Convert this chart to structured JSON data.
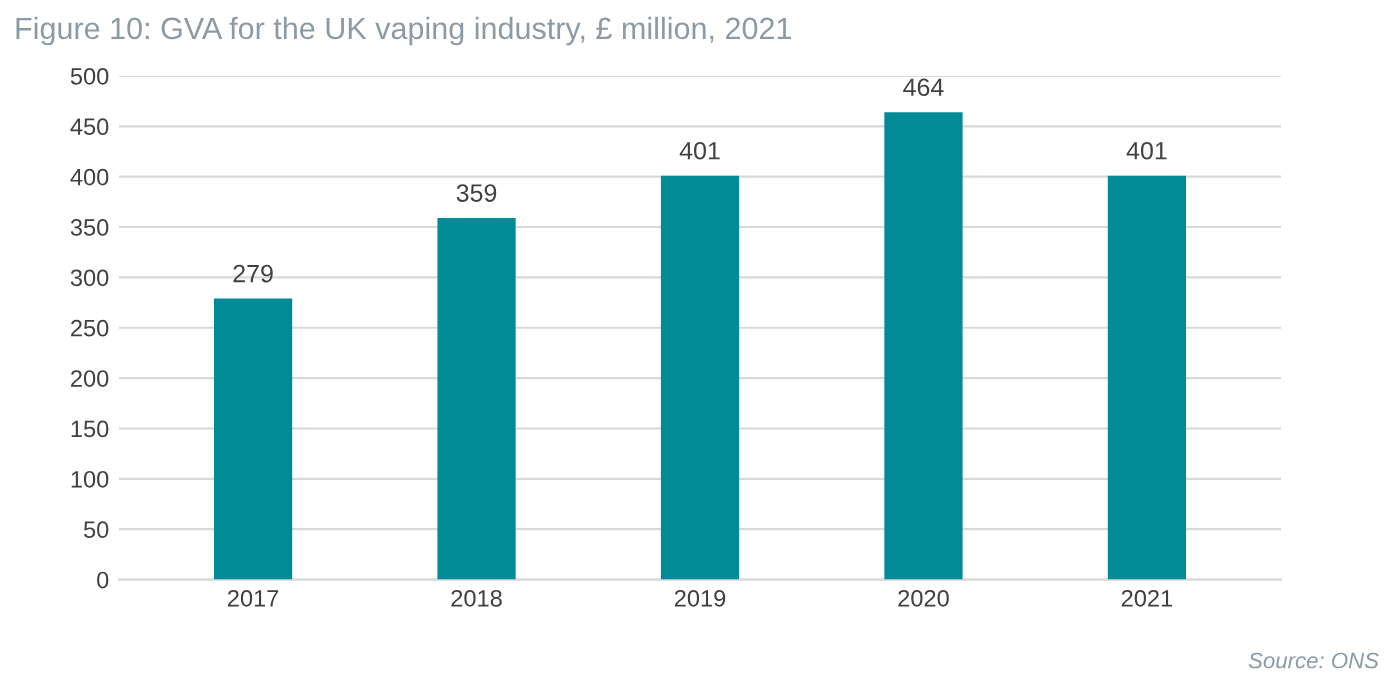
{
  "chart_data": {
    "type": "bar",
    "title": "Figure 10: GVA for the UK vaping industry, £ million, 2021",
    "categories": [
      "2017",
      "2018",
      "2019",
      "2020",
      "2021"
    ],
    "values": [
      279,
      359,
      401,
      464,
      401
    ],
    "color": "#008b96",
    "ylim": [
      0,
      500
    ],
    "yticks": [
      0,
      50,
      100,
      150,
      200,
      250,
      300,
      350,
      400,
      450,
      500
    ],
    "grid": "y",
    "data_labels": true,
    "annotations": [
      "Source: ONS"
    ]
  }
}
